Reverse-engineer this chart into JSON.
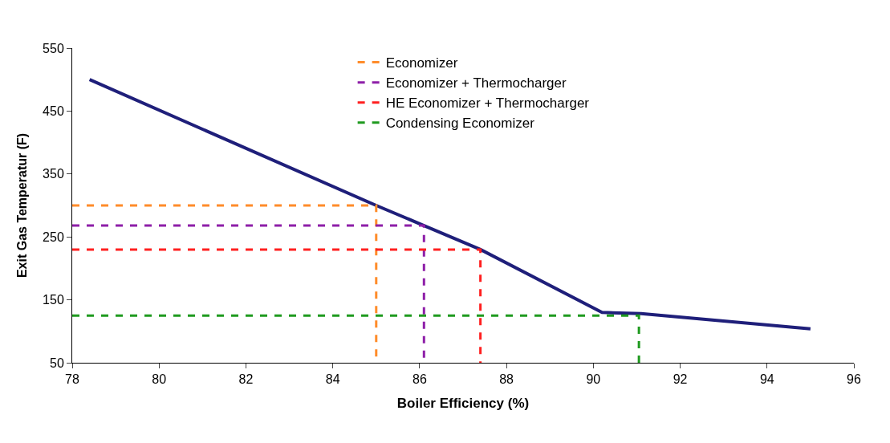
{
  "chart_data": {
    "type": "line",
    "xlabel": "Boiler Efficiency (%)",
    "ylabel": "Exit Gas Temperatur (F)",
    "series": [
      {
        "color": "#1f1f7a",
        "x": [
          78.4,
          85,
          86.1,
          87.4,
          90.2,
          91.1,
          95
        ],
        "values": [
          500,
          300,
          268,
          230,
          130,
          128,
          104
        ]
      },
      {
        "name": "Economizer",
        "color": "#ff8c2a",
        "line_style": "dashed",
        "x": [
          78,
          85,
          85
        ],
        "values": [
          300,
          300,
          50
        ]
      },
      {
        "name": "Economizer + Thermocharger",
        "color": "#8e1fa8",
        "line_style": "dashed",
        "x": [
          78,
          86.1,
          86.1
        ],
        "values": [
          268,
          268,
          50
        ]
      },
      {
        "name": "HE Economizer + Thermocharger",
        "color": "#ff2020",
        "line_style": "dashed",
        "x": [
          78,
          87.4,
          87.4
        ],
        "values": [
          230,
          230,
          50
        ]
      },
      {
        "name": "Condensing Economizer",
        "color": "#1f9a1f",
        "line_style": "dashed",
        "x": [
          78,
          91.05,
          91.05
        ],
        "values": [
          125,
          125,
          50
        ]
      }
    ],
    "xlim": [
      78,
      96
    ],
    "xticks": [
      78,
      80,
      82,
      84,
      86,
      88,
      90,
      92,
      94,
      96
    ],
    "ylim": [
      50,
      550
    ],
    "yticks": [
      50,
      150,
      250,
      350,
      450,
      550
    ],
    "grid": false,
    "legend": "top",
    "marker": "none"
  }
}
